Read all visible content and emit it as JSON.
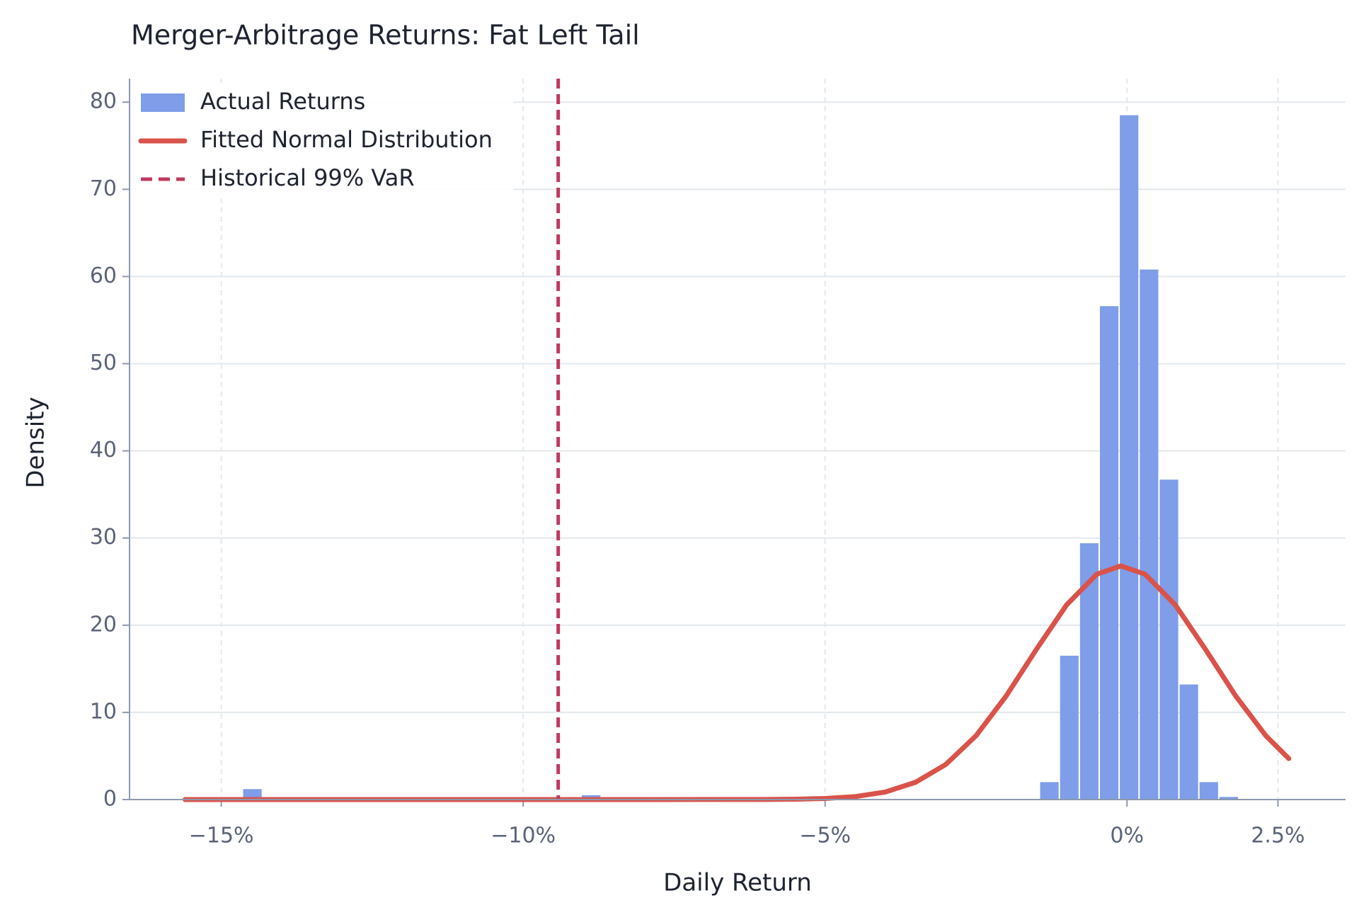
{
  "chart_data": {
    "type": "histogram",
    "title": "Merger-Arbitrage Returns: Fat Left Tail",
    "x_label": "Daily Return",
    "y_label": "Density",
    "name": "Actual Returns",
    "color": "#7f9de8",
    "bins": [
      -15.64,
      -15.31,
      -14.98,
      -14.65,
      -14.32,
      -13.99,
      -13.66,
      -13.33,
      -13.0,
      -12.67,
      -12.34,
      -12.01,
      -11.68,
      -11.35,
      -11.02,
      -10.69,
      -10.36,
      -10.03,
      -9.7,
      -9.37,
      -9.04,
      -8.71,
      -8.38,
      -8.05,
      -7.72,
      -7.39,
      -7.06,
      -6.73,
      -6.4,
      -6.07,
      -5.74,
      -5.41,
      -5.08,
      -4.75,
      -4.42,
      -4.09,
      -3.76,
      -3.43,
      -3.1,
      -2.77,
      -2.44,
      -2.11,
      -1.78,
      -1.45,
      -1.12,
      -0.79,
      -0.46,
      -0.13,
      0.2,
      0.53,
      0.86,
      1.19,
      1.52,
      1.85
    ],
    "counts": [
      0,
      0,
      0,
      1.2,
      0,
      0,
      0,
      0,
      0,
      0,
      0,
      0,
      0,
      0,
      0,
      0,
      0,
      0,
      0,
      0,
      0.5,
      0,
      0,
      0,
      0,
      0,
      0,
      0,
      0,
      0,
      0,
      0,
      0,
      0,
      0,
      0,
      0,
      0,
      0,
      0,
      0,
      0,
      0,
      2.0,
      16.5,
      29.4,
      56.6,
      78.5,
      60.8,
      36.7,
      13.2,
      2.0,
      0.3
    ],
    "lines": [
      {
        "type": "line",
        "name": "Fitted Normal Distribution",
        "color": "#d9534a",
        "x": [
          -15.6,
          -12,
          -8,
          -6,
          -5.5,
          -5,
          -4.5,
          -4,
          -3.5,
          -3,
          -2.5,
          -2,
          -1.5,
          -1,
          -0.5,
          -0.1,
          0.3,
          0.8,
          1.3,
          1.8,
          2.3,
          2.68
        ],
        "values": [
          0,
          0,
          0,
          0.01,
          0.04,
          0.12,
          0.34,
          0.87,
          1.99,
          4.03,
          7.32,
          11.89,
          17.23,
          22.33,
          25.85,
          26.8,
          25.85,
          22.33,
          17.23,
          11.89,
          7.32,
          4.7
        ]
      }
    ],
    "vlines": [
      {
        "name": "Historical 99% VaR",
        "color": "#c0395f",
        "x": -9.42,
        "dashed": true
      }
    ],
    "xlim": [
      -16.52,
      3.62
    ],
    "ylim": [
      0,
      82.7
    ],
    "xticks": [
      {
        "value": -15,
        "label": "−15%"
      },
      {
        "value": -10,
        "label": "−10%"
      },
      {
        "value": -5,
        "label": "−5%"
      },
      {
        "value": 0,
        "label": "0%"
      },
      {
        "value": 2.5,
        "label": "2.5%"
      }
    ],
    "yticks": [
      0,
      10,
      20,
      30,
      40,
      50,
      60,
      70,
      80
    ],
    "grid": true,
    "legend": "upper left"
  }
}
